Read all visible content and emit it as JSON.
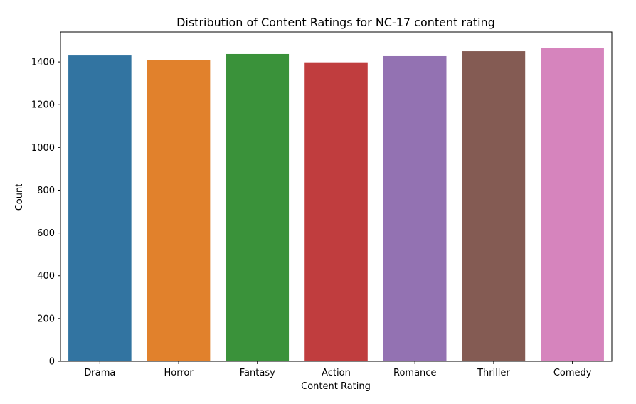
{
  "chart_data": {
    "type": "bar",
    "title": "Distribution of Content Ratings for NC-17 content rating",
    "xlabel": "Content Rating",
    "ylabel": "Count",
    "categories": [
      "Drama",
      "Horror",
      "Fantasy",
      "Action",
      "Romance",
      "Thriller",
      "Comedy"
    ],
    "values": [
      1430,
      1407,
      1437,
      1398,
      1427,
      1450,
      1465
    ],
    "colors": [
      "#3274a1",
      "#e1812c",
      "#3a923a",
      "#c03d3e",
      "#9372b2",
      "#845b53",
      "#d684bd"
    ],
    "ylim": [
      0,
      1540
    ],
    "yticks": [
      0,
      200,
      400,
      600,
      800,
      1000,
      1200,
      1400
    ],
    "grid": false,
    "legend": "none"
  }
}
